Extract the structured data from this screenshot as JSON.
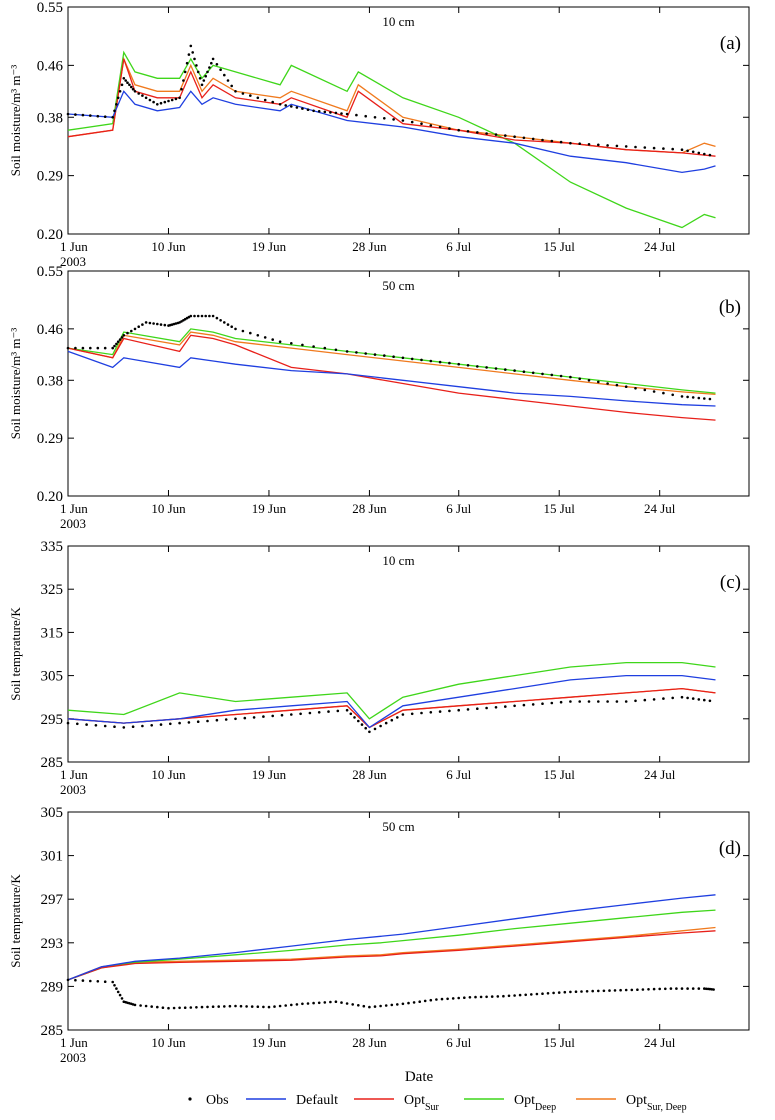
{
  "figure": {
    "x_ticks": [
      "1 Jun",
      "10 Jun",
      "19 Jun",
      "28 Jun",
      "6 Jul",
      "15 Jul",
      "24 Jul"
    ],
    "x_year": "2003",
    "xlabel": "Date",
    "legend": [
      {
        "label": "Obs",
        "sub": "",
        "color": "#000000",
        "kind": "dot"
      },
      {
        "label": "Default",
        "sub": "",
        "color": "#1f3fe0",
        "kind": "line"
      },
      {
        "label": "Opt",
        "sub": "Sur",
        "color": "#e8201a",
        "kind": "line"
      },
      {
        "label": "Opt",
        "sub": "Deep",
        "color": "#3fd61a",
        "kind": "line"
      },
      {
        "label": "Opt",
        "sub": "Sur, Deep",
        "color": "#f07a1e",
        "kind": "line"
      }
    ]
  },
  "chart_data": [
    {
      "type": "line",
      "panel_label": "(a)",
      "depth_label": "10 cm",
      "ylabel": "Soil moisture/m³ m⁻³",
      "ylim": [
        0.2,
        0.55
      ],
      "yticks": [
        "0.20",
        "0.29",
        "0.38",
        "0.46",
        "0.55"
      ],
      "x_unit": "day of period (1 Jun = 0)",
      "series": [
        {
          "name": "Obs",
          "color": "#000000",
          "x": [
            0,
            4,
            5,
            6,
            8,
            10,
            11,
            12,
            13,
            15,
            19,
            22,
            25,
            30,
            35,
            40,
            45,
            50,
            55,
            58
          ],
          "y": [
            0.385,
            0.38,
            0.44,
            0.42,
            0.4,
            0.41,
            0.49,
            0.43,
            0.47,
            0.42,
            0.4,
            0.39,
            0.385,
            0.375,
            0.36,
            0.35,
            0.34,
            0.335,
            0.33,
            0.32
          ]
        },
        {
          "name": "Default",
          "color": "#1f3fe0",
          "x": [
            0,
            4,
            5,
            6,
            8,
            10,
            11,
            12,
            13,
            15,
            19,
            20,
            25,
            30,
            35,
            40,
            45,
            50,
            55,
            57,
            58
          ],
          "y": [
            0.385,
            0.38,
            0.42,
            0.4,
            0.39,
            0.395,
            0.42,
            0.4,
            0.41,
            0.4,
            0.39,
            0.4,
            0.375,
            0.365,
            0.35,
            0.34,
            0.32,
            0.31,
            0.295,
            0.3,
            0.305
          ]
        },
        {
          "name": "Opt_Sur",
          "color": "#e8201a",
          "x": [
            0,
            4,
            5,
            6,
            8,
            10,
            11,
            12,
            13,
            15,
            19,
            20,
            25,
            26,
            30,
            35,
            40,
            45,
            50,
            55,
            58
          ],
          "y": [
            0.35,
            0.36,
            0.47,
            0.42,
            0.41,
            0.41,
            0.45,
            0.41,
            0.43,
            0.41,
            0.4,
            0.41,
            0.38,
            0.42,
            0.37,
            0.36,
            0.345,
            0.34,
            0.33,
            0.325,
            0.32
          ]
        },
        {
          "name": "Opt_Deep",
          "color": "#3fd61a",
          "x": [
            0,
            4,
            5,
            6,
            8,
            10,
            11,
            12,
            13,
            15,
            19,
            20,
            25,
            26,
            30,
            35,
            40,
            45,
            50,
            55,
            57,
            58
          ],
          "y": [
            0.36,
            0.37,
            0.48,
            0.45,
            0.44,
            0.44,
            0.47,
            0.44,
            0.46,
            0.45,
            0.43,
            0.46,
            0.42,
            0.45,
            0.41,
            0.38,
            0.34,
            0.28,
            0.24,
            0.21,
            0.23,
            0.225
          ]
        },
        {
          "name": "Opt_Sur,Deep",
          "color": "#f07a1e",
          "x": [
            0,
            4,
            5,
            6,
            8,
            10,
            11,
            12,
            13,
            15,
            19,
            20,
            25,
            26,
            30,
            35,
            40,
            45,
            50,
            55,
            57,
            58
          ],
          "y": [
            0.35,
            0.36,
            0.47,
            0.43,
            0.42,
            0.42,
            0.46,
            0.42,
            0.44,
            0.42,
            0.41,
            0.42,
            0.39,
            0.43,
            0.38,
            0.36,
            0.35,
            0.34,
            0.33,
            0.325,
            0.34,
            0.335
          ]
        }
      ]
    },
    {
      "type": "line",
      "panel_label": "(b)",
      "depth_label": "50 cm",
      "ylabel": "Soil moisture/m³ m⁻³",
      "ylim": [
        0.2,
        0.55
      ],
      "yticks": [
        "0.20",
        "0.29",
        "0.38",
        "0.46",
        "0.55"
      ],
      "x_unit": "day of period (1 Jun = 0)",
      "series": [
        {
          "name": "Obs",
          "color": "#000000",
          "x": [
            0,
            4,
            5,
            7,
            9,
            10,
            11,
            13,
            15,
            19,
            25,
            30,
            35,
            40,
            45,
            50,
            55,
            58
          ],
          "y": [
            0.43,
            0.43,
            0.45,
            0.47,
            0.465,
            0.47,
            0.48,
            0.48,
            0.46,
            0.44,
            0.425,
            0.415,
            0.405,
            0.395,
            0.385,
            0.37,
            0.355,
            0.35
          ]
        },
        {
          "name": "Default",
          "color": "#1f3fe0",
          "x": [
            0,
            4,
            5,
            10,
            11,
            13,
            15,
            20,
            25,
            30,
            35,
            40,
            45,
            50,
            55,
            58
          ],
          "y": [
            0.425,
            0.4,
            0.415,
            0.4,
            0.415,
            0.41,
            0.405,
            0.395,
            0.39,
            0.38,
            0.37,
            0.36,
            0.355,
            0.348,
            0.342,
            0.34
          ]
        },
        {
          "name": "Opt_Sur",
          "color": "#e8201a",
          "x": [
            0,
            4,
            5,
            10,
            11,
            13,
            15,
            20,
            25,
            30,
            35,
            40,
            45,
            50,
            55,
            58
          ],
          "y": [
            0.43,
            0.415,
            0.445,
            0.425,
            0.45,
            0.445,
            0.435,
            0.4,
            0.39,
            0.375,
            0.36,
            0.35,
            0.34,
            0.33,
            0.322,
            0.318
          ]
        },
        {
          "name": "Opt_Deep",
          "color": "#3fd61a",
          "x": [
            0,
            4,
            5,
            10,
            11,
            13,
            15,
            20,
            25,
            30,
            35,
            40,
            45,
            50,
            55,
            58
          ],
          "y": [
            0.43,
            0.42,
            0.455,
            0.44,
            0.46,
            0.455,
            0.445,
            0.435,
            0.425,
            0.415,
            0.405,
            0.395,
            0.385,
            0.375,
            0.365,
            0.36
          ]
        },
        {
          "name": "Opt_Sur,Deep",
          "color": "#f07a1e",
          "x": [
            0,
            4,
            5,
            10,
            11,
            13,
            15,
            20,
            25,
            30,
            35,
            40,
            45,
            50,
            55,
            58
          ],
          "y": [
            0.43,
            0.415,
            0.45,
            0.435,
            0.455,
            0.45,
            0.44,
            0.43,
            0.42,
            0.41,
            0.4,
            0.39,
            0.38,
            0.37,
            0.362,
            0.358
          ]
        }
      ]
    },
    {
      "type": "line",
      "panel_label": "(c)",
      "depth_label": "10 cm",
      "ylabel": "Soil temprature/K",
      "ylim": [
        285,
        335
      ],
      "yticks": [
        "285",
        "295",
        "305",
        "315",
        "325",
        "335"
      ],
      "x_unit": "day of period (1 Jun = 0)",
      "series": [
        {
          "name": "Obs",
          "color": "#000000",
          "x": [
            0,
            5,
            10,
            15,
            20,
            25,
            27,
            30,
            35,
            40,
            45,
            50,
            55,
            58
          ],
          "y": [
            294,
            293,
            294,
            295,
            296,
            297,
            292,
            296,
            297,
            298,
            299,
            299,
            300,
            299
          ]
        },
        {
          "name": "Default",
          "color": "#1f3fe0",
          "x": [
            0,
            5,
            10,
            15,
            20,
            25,
            27,
            30,
            35,
            40,
            45,
            50,
            55,
            58
          ],
          "y": [
            295,
            294,
            295,
            297,
            298,
            299,
            293,
            298,
            300,
            302,
            304,
            305,
            305,
            304
          ]
        },
        {
          "name": "Opt_Sur",
          "color": "#e8201a",
          "x": [
            0,
            5,
            10,
            15,
            20,
            25,
            27,
            30,
            35,
            40,
            45,
            50,
            55,
            58
          ],
          "y": [
            295,
            294,
            295,
            296,
            297,
            298,
            293,
            297,
            298,
            299,
            300,
            301,
            302,
            301
          ]
        },
        {
          "name": "Opt_Deep",
          "color": "#3fd61a",
          "x": [
            0,
            5,
            10,
            15,
            20,
            25,
            27,
            30,
            35,
            40,
            45,
            50,
            55,
            58
          ],
          "y": [
            297,
            296,
            301,
            299,
            300,
            301,
            295,
            300,
            303,
            305,
            307,
            308,
            308,
            307
          ]
        },
        {
          "name": "Opt_Sur,Deep",
          "color": "#f07a1e",
          "x": [
            0,
            5,
            10,
            15,
            20,
            25,
            27,
            30,
            35,
            40,
            45,
            50,
            55,
            58
          ],
          "y": [
            295,
            294,
            295,
            296,
            297,
            298,
            293,
            297,
            298,
            299,
            300,
            301,
            302,
            301
          ]
        }
      ]
    },
    {
      "type": "line",
      "panel_label": "(d)",
      "depth_label": "50 cm",
      "ylabel": "Soil temprature/K",
      "ylim": [
        285,
        305
      ],
      "yticks": [
        "285",
        "289",
        "293",
        "297",
        "301",
        "305"
      ],
      "x_unit": "day of period (1 Jun = 0)",
      "series": [
        {
          "name": "Obs",
          "color": "#000000",
          "x": [
            0,
            4,
            5,
            6,
            9,
            12,
            15,
            18,
            21,
            24,
            27,
            30,
            33,
            36,
            39,
            42,
            45,
            48,
            51,
            54,
            57,
            58
          ],
          "y": [
            289.6,
            289.4,
            287.6,
            287.3,
            287.0,
            287.1,
            287.2,
            287.1,
            287.4,
            287.6,
            287.1,
            287.4,
            287.8,
            288.0,
            288.1,
            288.3,
            288.5,
            288.6,
            288.7,
            288.8,
            288.8,
            288.7
          ]
        },
        {
          "name": "Default",
          "color": "#1f3fe0",
          "x": [
            0,
            3,
            6,
            10,
            15,
            20,
            25,
            28,
            30,
            35,
            40,
            45,
            50,
            55,
            58
          ],
          "y": [
            289.6,
            290.8,
            291.3,
            291.6,
            292.1,
            292.7,
            293.3,
            293.6,
            293.8,
            294.5,
            295.2,
            295.9,
            296.5,
            297.1,
            297.4
          ]
        },
        {
          "name": "Opt_Sur",
          "color": "#e8201a",
          "x": [
            0,
            3,
            6,
            10,
            15,
            20,
            25,
            28,
            30,
            35,
            40,
            45,
            50,
            55,
            58
          ],
          "y": [
            289.6,
            290.7,
            291.1,
            291.2,
            291.3,
            291.4,
            291.7,
            291.8,
            292.0,
            292.3,
            292.7,
            293.1,
            293.5,
            293.9,
            294.1
          ]
        },
        {
          "name": "Opt_Deep",
          "color": "#3fd61a",
          "x": [
            0,
            3,
            6,
            10,
            15,
            20,
            25,
            28,
            30,
            35,
            40,
            45,
            50,
            55,
            58
          ],
          "y": [
            289.6,
            290.7,
            291.2,
            291.5,
            291.9,
            292.3,
            292.8,
            293.0,
            293.2,
            293.7,
            294.3,
            294.8,
            295.3,
            295.8,
            296.0
          ]
        },
        {
          "name": "Opt_Sur,Deep",
          "color": "#f07a1e",
          "x": [
            0,
            3,
            6,
            10,
            15,
            20,
            25,
            28,
            30,
            35,
            40,
            45,
            50,
            55,
            58
          ],
          "y": [
            289.6,
            290.8,
            291.2,
            291.3,
            291.4,
            291.5,
            291.8,
            291.9,
            292.1,
            292.4,
            292.8,
            293.2,
            293.6,
            294.1,
            294.4
          ]
        }
      ]
    }
  ]
}
